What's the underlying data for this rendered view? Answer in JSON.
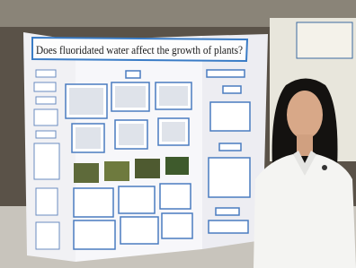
{
  "poster": {
    "title": "Does fluoridated water affect the growth of plants?"
  }
}
